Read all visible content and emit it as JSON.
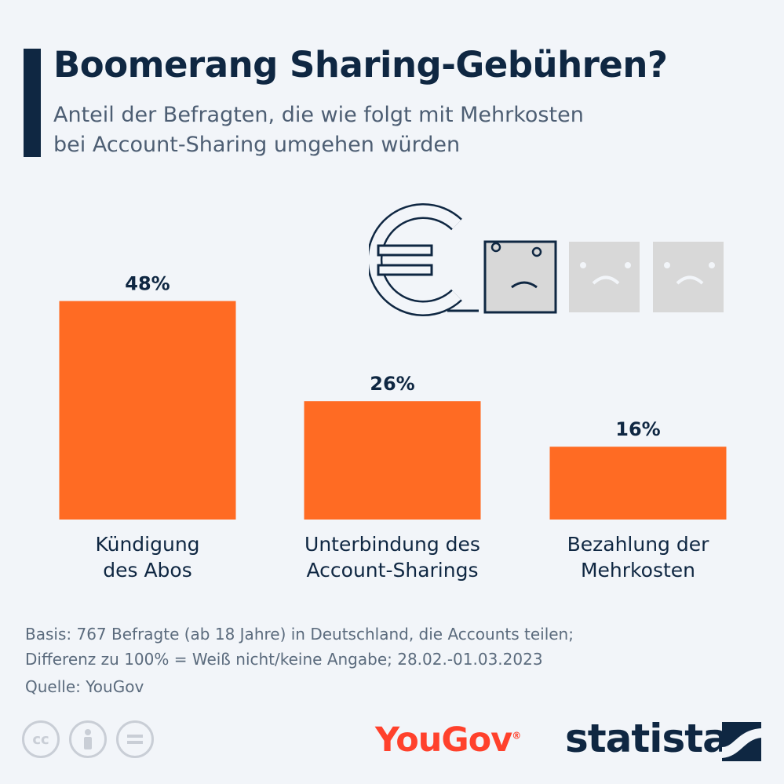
{
  "header": {
    "title": "Boomerang Sharing-Gebühren?",
    "subtitle_line1": "Anteil der Befragten, die wie folgt mit Mehrkosten",
    "subtitle_line2": "bei Account-Sharing umgehen würden"
  },
  "chart_data": {
    "type": "bar",
    "categories": [
      [
        "Kündigung",
        "des Abos"
      ],
      [
        "Unterbindung des",
        "Account-Sharings"
      ],
      [
        "Bezahlung der",
        "Mehrkosten"
      ]
    ],
    "values": [
      48,
      26,
      16
    ],
    "value_labels": [
      "48%",
      "26%",
      "16%"
    ],
    "bar_color": "#ff6b23",
    "grid": false
  },
  "footer": {
    "note_line1": "Basis: 767 Befragte (ab 18 Jahre) in Deutschland, die Accounts teilen;",
    "note_line2": "Differenz zu 100% = Weiß nicht/keine Angabe; 28.02.-01.03.2023",
    "source": "Quelle: YouGov",
    "license_icons": [
      "cc-icon",
      "by-person-icon",
      "nd-equals-icon"
    ],
    "yougov_logo": "YouGov",
    "yougov_trademark": "®",
    "statista_logo": "statista"
  },
  "colors": {
    "navy": "#0f2742",
    "orange": "#ff6b23",
    "yougov_red": "#ff412c",
    "background": "#f2f5f9"
  },
  "illustration": {
    "icons": [
      "euro-icon",
      "sad-face-icon",
      "sad-face-icon",
      "sad-face-icon"
    ]
  }
}
